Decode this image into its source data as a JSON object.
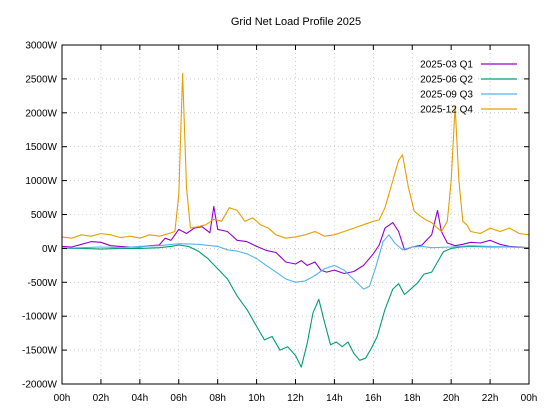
{
  "chart_data": {
    "type": "line",
    "title": "Grid Net Load Profile 2025",
    "xlabel": "",
    "ylabel": "",
    "xlim": [
      0,
      24
    ],
    "ylim": [
      -2000,
      3000
    ],
    "x_ticks": [
      "00h",
      "02h",
      "04h",
      "06h",
      "08h",
      "10h",
      "12h",
      "14h",
      "16h",
      "18h",
      "20h",
      "22h",
      "00h"
    ],
    "y_ticks": [
      "3000W",
      "2500W",
      "2000W",
      "1500W",
      "1000W",
      "500W",
      "0W",
      "-500W",
      "-1000W",
      "-1500W",
      "-2000W"
    ],
    "y_tick_values": [
      3000,
      2500,
      2000,
      1500,
      1000,
      500,
      0,
      -500,
      -1000,
      -1500,
      -2000
    ],
    "grid": true,
    "legend_position": "top-right",
    "series": [
      {
        "name": "2025-03 Q1",
        "color": "#9400d3",
        "points": [
          [
            0,
            30
          ],
          [
            0.5,
            20
          ],
          [
            1,
            60
          ],
          [
            1.5,
            100
          ],
          [
            2,
            90
          ],
          [
            2.5,
            40
          ],
          [
            3,
            30
          ],
          [
            3.5,
            20
          ],
          [
            4,
            20
          ],
          [
            4.5,
            40
          ],
          [
            5,
            50
          ],
          [
            5.3,
            150
          ],
          [
            5.6,
            120
          ],
          [
            6,
            280
          ],
          [
            6.4,
            220
          ],
          [
            6.8,
            300
          ],
          [
            7.2,
            320
          ],
          [
            7.6,
            230
          ],
          [
            7.8,
            620
          ],
          [
            8,
            280
          ],
          [
            8.5,
            250
          ],
          [
            9,
            120
          ],
          [
            9.5,
            100
          ],
          [
            10,
            30
          ],
          [
            10.5,
            -30
          ],
          [
            11,
            -60
          ],
          [
            11.5,
            -200
          ],
          [
            12,
            -230
          ],
          [
            12.3,
            -180
          ],
          [
            12.6,
            -250
          ],
          [
            13,
            -200
          ],
          [
            13.3,
            -320
          ],
          [
            13.6,
            -350
          ],
          [
            14,
            -320
          ],
          [
            14.5,
            -370
          ],
          [
            15,
            -340
          ],
          [
            15.5,
            -250
          ],
          [
            16,
            -80
          ],
          [
            16.3,
            50
          ],
          [
            16.6,
            300
          ],
          [
            17,
            380
          ],
          [
            17.3,
            250
          ],
          [
            17.6,
            -20
          ],
          [
            18,
            20
          ],
          [
            18.5,
            50
          ],
          [
            19,
            200
          ],
          [
            19.3,
            560
          ],
          [
            19.5,
            250
          ],
          [
            19.8,
            80
          ],
          [
            20.2,
            40
          ],
          [
            20.6,
            60
          ],
          [
            21,
            90
          ],
          [
            21.5,
            80
          ],
          [
            22,
            120
          ],
          [
            22.5,
            60
          ],
          [
            23,
            30
          ],
          [
            23.5,
            20
          ],
          [
            24,
            10
          ]
        ]
      },
      {
        "name": "2025-06 Q2",
        "color": "#009e73",
        "points": [
          [
            0,
            0
          ],
          [
            1,
            0
          ],
          [
            2,
            -10
          ],
          [
            3,
            0
          ],
          [
            4,
            0
          ],
          [
            5,
            10
          ],
          [
            5.6,
            30
          ],
          [
            6,
            50
          ],
          [
            6.5,
            30
          ],
          [
            7,
            -40
          ],
          [
            7.5,
            -150
          ],
          [
            8,
            -300
          ],
          [
            8.5,
            -450
          ],
          [
            9,
            -700
          ],
          [
            9.5,
            -900
          ],
          [
            10,
            -1150
          ],
          [
            10.4,
            -1350
          ],
          [
            10.8,
            -1300
          ],
          [
            11.2,
            -1500
          ],
          [
            11.6,
            -1450
          ],
          [
            12,
            -1580
          ],
          [
            12.3,
            -1750
          ],
          [
            12.6,
            -1400
          ],
          [
            12.9,
            -950
          ],
          [
            13.2,
            -750
          ],
          [
            13.5,
            -1100
          ],
          [
            13.8,
            -1420
          ],
          [
            14.1,
            -1380
          ],
          [
            14.4,
            -1450
          ],
          [
            14.7,
            -1380
          ],
          [
            15,
            -1550
          ],
          [
            15.3,
            -1650
          ],
          [
            15.6,
            -1620
          ],
          [
            15.9,
            -1470
          ],
          [
            16.2,
            -1300
          ],
          [
            16.6,
            -900
          ],
          [
            17,
            -600
          ],
          [
            17.3,
            -520
          ],
          [
            17.6,
            -680
          ],
          [
            18,
            -580
          ],
          [
            18.3,
            -500
          ],
          [
            18.6,
            -380
          ],
          [
            19,
            -350
          ],
          [
            19.3,
            -200
          ],
          [
            19.6,
            -50
          ],
          [
            20,
            0
          ],
          [
            20.5,
            20
          ],
          [
            21,
            30
          ],
          [
            22,
            20
          ],
          [
            23,
            20
          ],
          [
            24,
            10
          ]
        ]
      },
      {
        "name": "2025-09 Q3",
        "color": "#56b4e9",
        "points": [
          [
            0,
            0
          ],
          [
            1,
            10
          ],
          [
            2,
            20
          ],
          [
            3,
            10
          ],
          [
            4,
            30
          ],
          [
            5,
            40
          ],
          [
            6,
            70
          ],
          [
            7,
            60
          ],
          [
            8,
            30
          ],
          [
            8.5,
            -20
          ],
          [
            9,
            -40
          ],
          [
            9.5,
            -80
          ],
          [
            10,
            -150
          ],
          [
            10.5,
            -250
          ],
          [
            11,
            -350
          ],
          [
            11.5,
            -450
          ],
          [
            12,
            -500
          ],
          [
            12.5,
            -480
          ],
          [
            13,
            -400
          ],
          [
            13.5,
            -300
          ],
          [
            14,
            -250
          ],
          [
            14.5,
            -320
          ],
          [
            15,
            -460
          ],
          [
            15.5,
            -600
          ],
          [
            15.8,
            -560
          ],
          [
            16.1,
            -300
          ],
          [
            16.5,
            100
          ],
          [
            16.8,
            200
          ],
          [
            17.1,
            80
          ],
          [
            17.5,
            -20
          ],
          [
            18,
            20
          ],
          [
            18.5,
            30
          ],
          [
            19,
            10
          ],
          [
            20,
            20
          ],
          [
            21,
            40
          ],
          [
            22,
            30
          ],
          [
            23,
            20
          ],
          [
            24,
            10
          ]
        ]
      },
      {
        "name": "2025-12 Q4",
        "color": "#e69f00",
        "points": [
          [
            0,
            170
          ],
          [
            0.5,
            150
          ],
          [
            1,
            200
          ],
          [
            1.5,
            180
          ],
          [
            2,
            220
          ],
          [
            2.5,
            200
          ],
          [
            3,
            160
          ],
          [
            3.5,
            180
          ],
          [
            4,
            150
          ],
          [
            4.5,
            200
          ],
          [
            5,
            180
          ],
          [
            5.5,
            220
          ],
          [
            5.8,
            250
          ],
          [
            6.0,
            800
          ],
          [
            6.2,
            2580
          ],
          [
            6.4,
            900
          ],
          [
            6.6,
            300
          ],
          [
            7,
            320
          ],
          [
            7.4,
            350
          ],
          [
            7.8,
            430
          ],
          [
            8.2,
            400
          ],
          [
            8.6,
            600
          ],
          [
            9,
            560
          ],
          [
            9.4,
            400
          ],
          [
            9.8,
            450
          ],
          [
            10.2,
            350
          ],
          [
            10.6,
            300
          ],
          [
            11,
            200
          ],
          [
            11.5,
            150
          ],
          [
            12,
            170
          ],
          [
            12.5,
            200
          ],
          [
            13,
            250
          ],
          [
            13.5,
            180
          ],
          [
            14,
            200
          ],
          [
            14.5,
            250
          ],
          [
            15,
            300
          ],
          [
            15.5,
            350
          ],
          [
            16,
            400
          ],
          [
            16.3,
            420
          ],
          [
            16.6,
            600
          ],
          [
            17,
            1000
          ],
          [
            17.3,
            1300
          ],
          [
            17.5,
            1380
          ],
          [
            17.8,
            900
          ],
          [
            18.1,
            550
          ],
          [
            18.4,
            480
          ],
          [
            18.7,
            420
          ],
          [
            19,
            380
          ],
          [
            19.3,
            300
          ],
          [
            19.5,
            250
          ],
          [
            19.8,
            400
          ],
          [
            20,
            1000
          ],
          [
            20.2,
            2100
          ],
          [
            20.4,
            1000
          ],
          [
            20.6,
            400
          ],
          [
            20.8,
            350
          ],
          [
            21,
            250
          ],
          [
            21.5,
            220
          ],
          [
            22,
            300
          ],
          [
            22.5,
            250
          ],
          [
            23,
            300
          ],
          [
            23.5,
            220
          ],
          [
            24,
            200
          ]
        ]
      }
    ]
  }
}
